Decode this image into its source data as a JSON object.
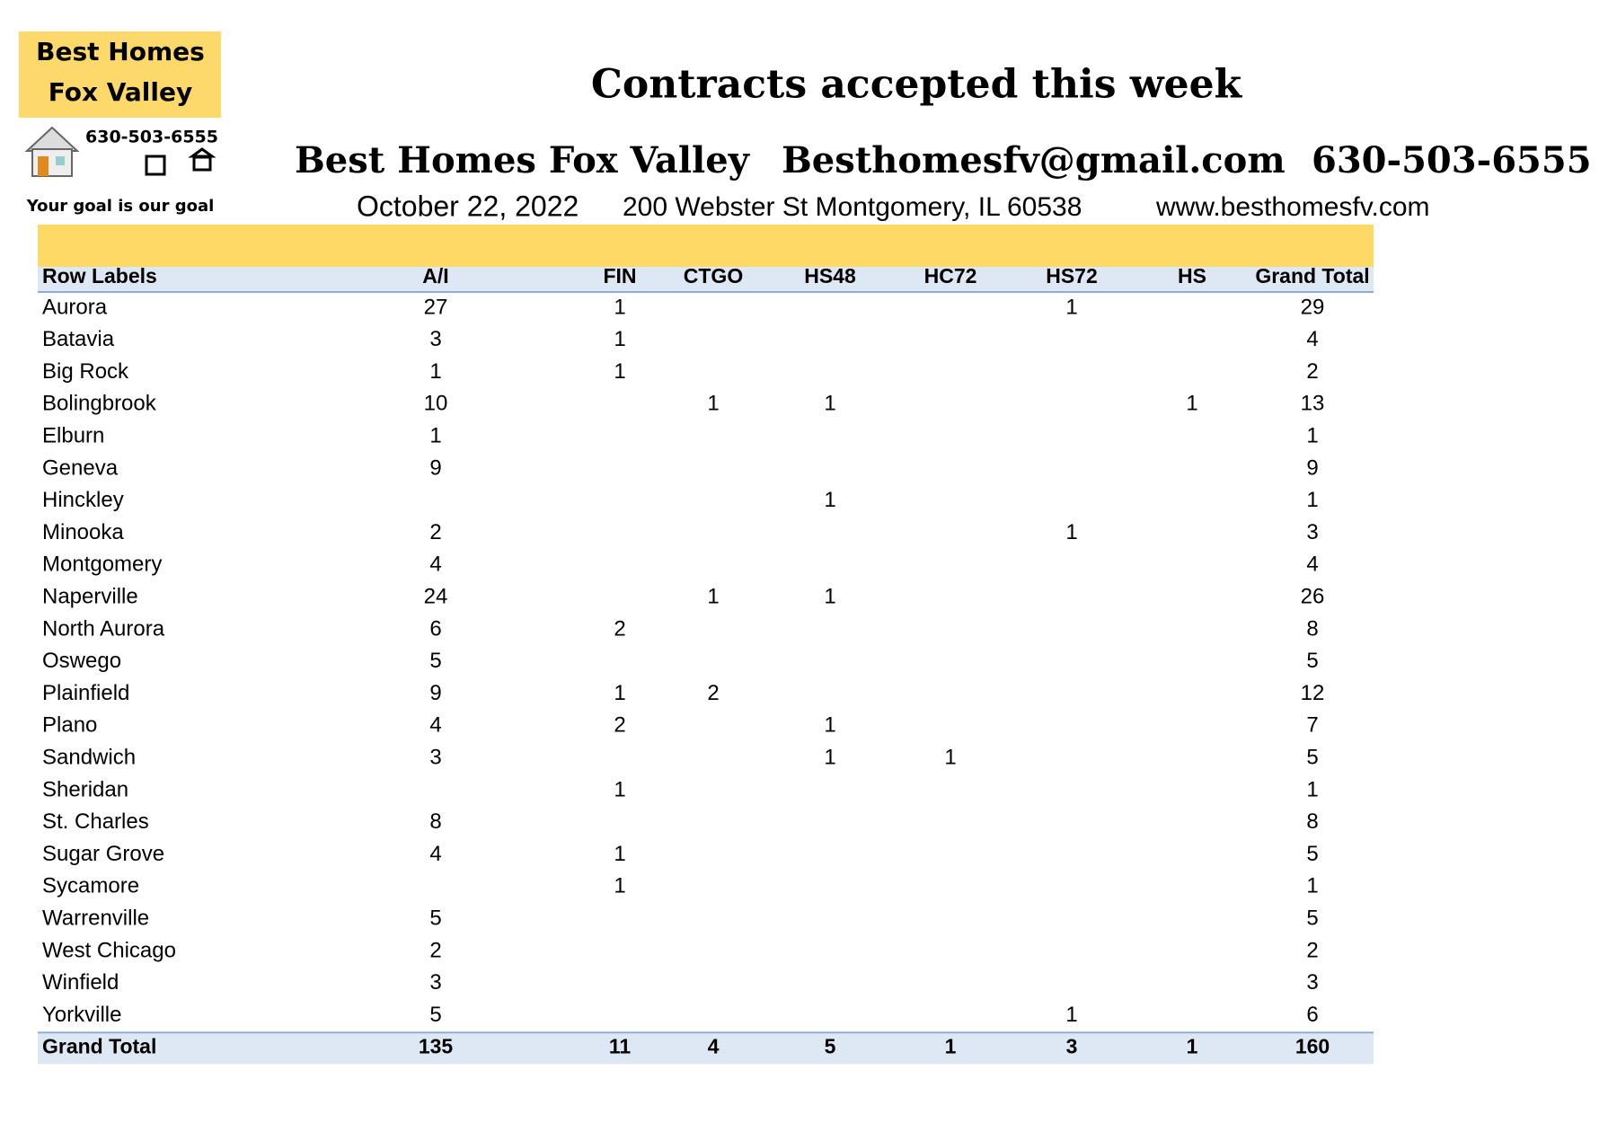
{
  "header": {
    "logo": {
      "line1": "Best Homes",
      "line2": "Fox Valley",
      "phone": "630-503-6555",
      "tagline": "Your goal is our goal"
    },
    "title": "Contracts accepted this week",
    "company": "Best Homes Fox Valley",
    "email": "Besthomesfv@gmail.com",
    "phone": "630-503-6555",
    "date": "October 22, 2022",
    "address": "200 Webster St Montgomery, IL 60538",
    "website": "www.besthomesfv.com"
  },
  "table": {
    "columns": [
      "Row Labels",
      "A/I",
      "FIN",
      "CTGO",
      "HS48",
      "HC72",
      "HS72",
      "HS",
      "Grand Total"
    ],
    "rows": [
      {
        "label": "Aurora",
        "values": [
          27,
          1,
          null,
          null,
          null,
          1,
          null,
          29
        ]
      },
      {
        "label": "Batavia",
        "values": [
          3,
          1,
          null,
          null,
          null,
          null,
          null,
          4
        ]
      },
      {
        "label": "Big Rock",
        "values": [
          1,
          1,
          null,
          null,
          null,
          null,
          null,
          2
        ]
      },
      {
        "label": "Bolingbrook",
        "values": [
          10,
          null,
          1,
          1,
          null,
          null,
          1,
          13
        ]
      },
      {
        "label": "Elburn",
        "values": [
          1,
          null,
          null,
          null,
          null,
          null,
          null,
          1
        ]
      },
      {
        "label": "Geneva",
        "values": [
          9,
          null,
          null,
          null,
          null,
          null,
          null,
          9
        ]
      },
      {
        "label": "Hinckley",
        "values": [
          null,
          null,
          null,
          1,
          null,
          null,
          null,
          1
        ]
      },
      {
        "label": "Minooka",
        "values": [
          2,
          null,
          null,
          null,
          null,
          1,
          null,
          3
        ]
      },
      {
        "label": "Montgomery",
        "values": [
          4,
          null,
          null,
          null,
          null,
          null,
          null,
          4
        ]
      },
      {
        "label": "Naperville",
        "values": [
          24,
          null,
          1,
          1,
          null,
          null,
          null,
          26
        ]
      },
      {
        "label": "North Aurora",
        "values": [
          6,
          2,
          null,
          null,
          null,
          null,
          null,
          8
        ]
      },
      {
        "label": "Oswego",
        "values": [
          5,
          null,
          null,
          null,
          null,
          null,
          null,
          5
        ]
      },
      {
        "label": "Plainfield",
        "values": [
          9,
          1,
          2,
          null,
          null,
          null,
          null,
          12
        ]
      },
      {
        "label": "Plano",
        "values": [
          4,
          2,
          null,
          1,
          null,
          null,
          null,
          7
        ]
      },
      {
        "label": "Sandwich",
        "values": [
          3,
          null,
          null,
          1,
          1,
          null,
          null,
          5
        ]
      },
      {
        "label": "Sheridan",
        "values": [
          null,
          1,
          null,
          null,
          null,
          null,
          null,
          1
        ]
      },
      {
        "label": "St. Charles",
        "values": [
          8,
          null,
          null,
          null,
          null,
          null,
          null,
          8
        ]
      },
      {
        "label": "Sugar Grove",
        "values": [
          4,
          1,
          null,
          null,
          null,
          null,
          null,
          5
        ]
      },
      {
        "label": "Sycamore",
        "values": [
          null,
          1,
          null,
          null,
          null,
          null,
          null,
          1
        ]
      },
      {
        "label": "Warrenville",
        "values": [
          5,
          null,
          null,
          null,
          null,
          null,
          null,
          5
        ]
      },
      {
        "label": "West Chicago",
        "values": [
          2,
          null,
          null,
          null,
          null,
          null,
          null,
          2
        ]
      },
      {
        "label": "Winfield",
        "values": [
          3,
          null,
          null,
          null,
          null,
          null,
          null,
          3
        ]
      },
      {
        "label": "Yorkville",
        "values": [
          5,
          null,
          null,
          null,
          null,
          1,
          null,
          6
        ]
      }
    ],
    "total": {
      "label": "Grand Total",
      "values": [
        135,
        11,
        4,
        5,
        1,
        3,
        1,
        160
      ]
    }
  }
}
